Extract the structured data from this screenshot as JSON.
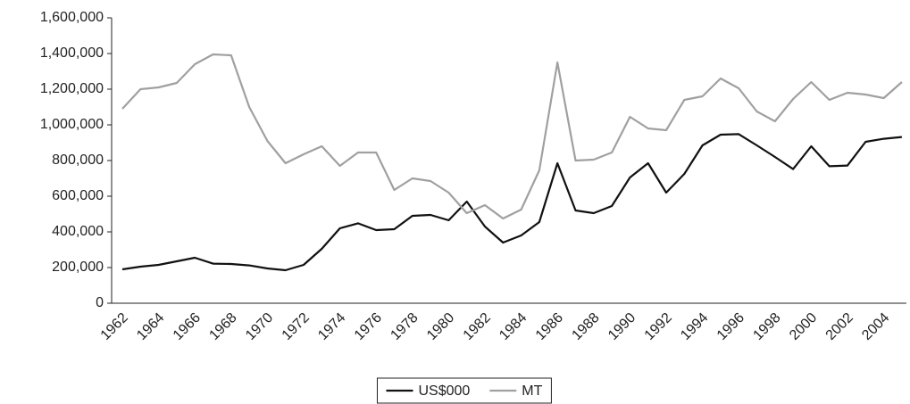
{
  "chart_data": {
    "type": "line",
    "categories": [
      "1962",
      null,
      "1964",
      null,
      "1966",
      null,
      "1968",
      null,
      "1970",
      null,
      "1972",
      null,
      "1974",
      null,
      "1976",
      null,
      "1978",
      null,
      "1980",
      null,
      "1982",
      null,
      "1984",
      null,
      "1986",
      null,
      "1988",
      null,
      "1990",
      null,
      "1992",
      null,
      "1994",
      null,
      "1996",
      null,
      "1998",
      null,
      "2000",
      null,
      "2002",
      null,
      "2004",
      null
    ],
    "series": [
      {
        "name": "US$000",
        "color": "#111111",
        "values": [
          190000,
          205000,
          215000,
          235000,
          255000,
          222000,
          220000,
          212000,
          195000,
          185000,
          215000,
          305000,
          420000,
          448000,
          410000,
          415000,
          490000,
          495000,
          465000,
          570000,
          430000,
          340000,
          380000,
          455000,
          785000,
          520000,
          505000,
          545000,
          705000,
          785000,
          620000,
          725000,
          885000,
          945000,
          948000,
          885000,
          820000,
          752000,
          880000,
          768000,
          772000,
          905000,
          922000,
          932000
        ]
      },
      {
        "name": "MT",
        "color": "#a0a0a0",
        "values": [
          1090000,
          1200000,
          1210000,
          1235000,
          1340000,
          1395000,
          1390000,
          1100000,
          910000,
          785000,
          835000,
          880000,
          770000,
          845000,
          845000,
          635000,
          700000,
          685000,
          620000,
          505000,
          550000,
          475000,
          525000,
          745000,
          1350000,
          800000,
          805000,
          845000,
          1045000,
          980000,
          970000,
          1140000,
          1160000,
          1260000,
          1205000,
          1075000,
          1020000,
          1145000,
          1240000,
          1140000,
          1180000,
          1170000,
          1150000,
          1240000
        ]
      }
    ],
    "ylim": [
      0,
      1600000
    ],
    "yticks": [
      0,
      {
        "value": 200000,
        "label": "200,000"
      },
      {
        "value": 400000,
        "label": "400,000"
      },
      {
        "value": 600000,
        "label": "600,000"
      },
      {
        "value": 800000,
        "label": "800,000"
      },
      {
        "value": 1000000,
        "label": "1,000,000"
      },
      {
        "value": 1200000,
        "label": "1,200,000"
      },
      {
        "value": 1400000,
        "label": "1,400,000"
      },
      {
        "value": 1600000,
        "label": "1,600,000"
      }
    ],
    "grid": false,
    "legend": "bottom"
  }
}
